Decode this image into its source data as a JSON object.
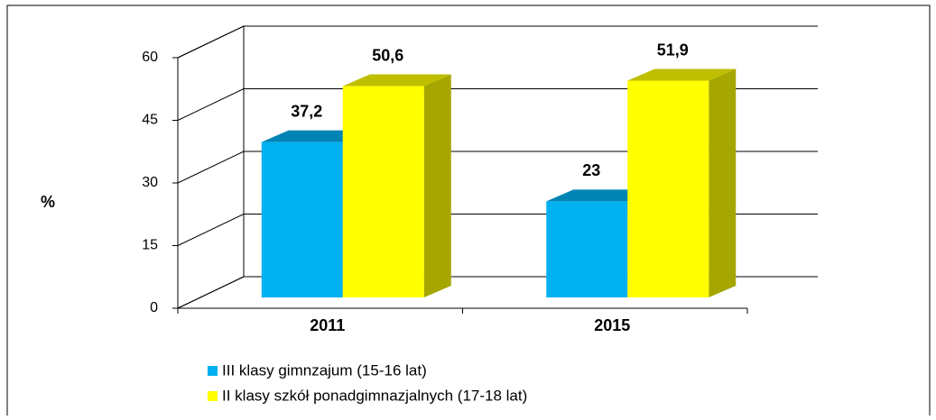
{
  "chart_data": {
    "type": "bar3d",
    "ylabel": "%",
    "categories": [
      "2011",
      "2015"
    ],
    "series": [
      {
        "name": "III klasy gimnzajum (15-16 lat)",
        "color": "#00b0f0",
        "values": [
          37.2,
          23
        ],
        "value_labels": [
          "37,2",
          "23"
        ]
      },
      {
        "name": "II klasy szkół ponadgimnazjalnych (17-18 lat)",
        "color": "#ffff00",
        "values": [
          50.6,
          51.9
        ],
        "value_labels": [
          "50,6",
          "51,9"
        ]
      }
    ],
    "ylim": [
      0,
      60
    ],
    "yticks": [
      0,
      15,
      30,
      45,
      60
    ],
    "grid": true,
    "legend": "bottom"
  }
}
